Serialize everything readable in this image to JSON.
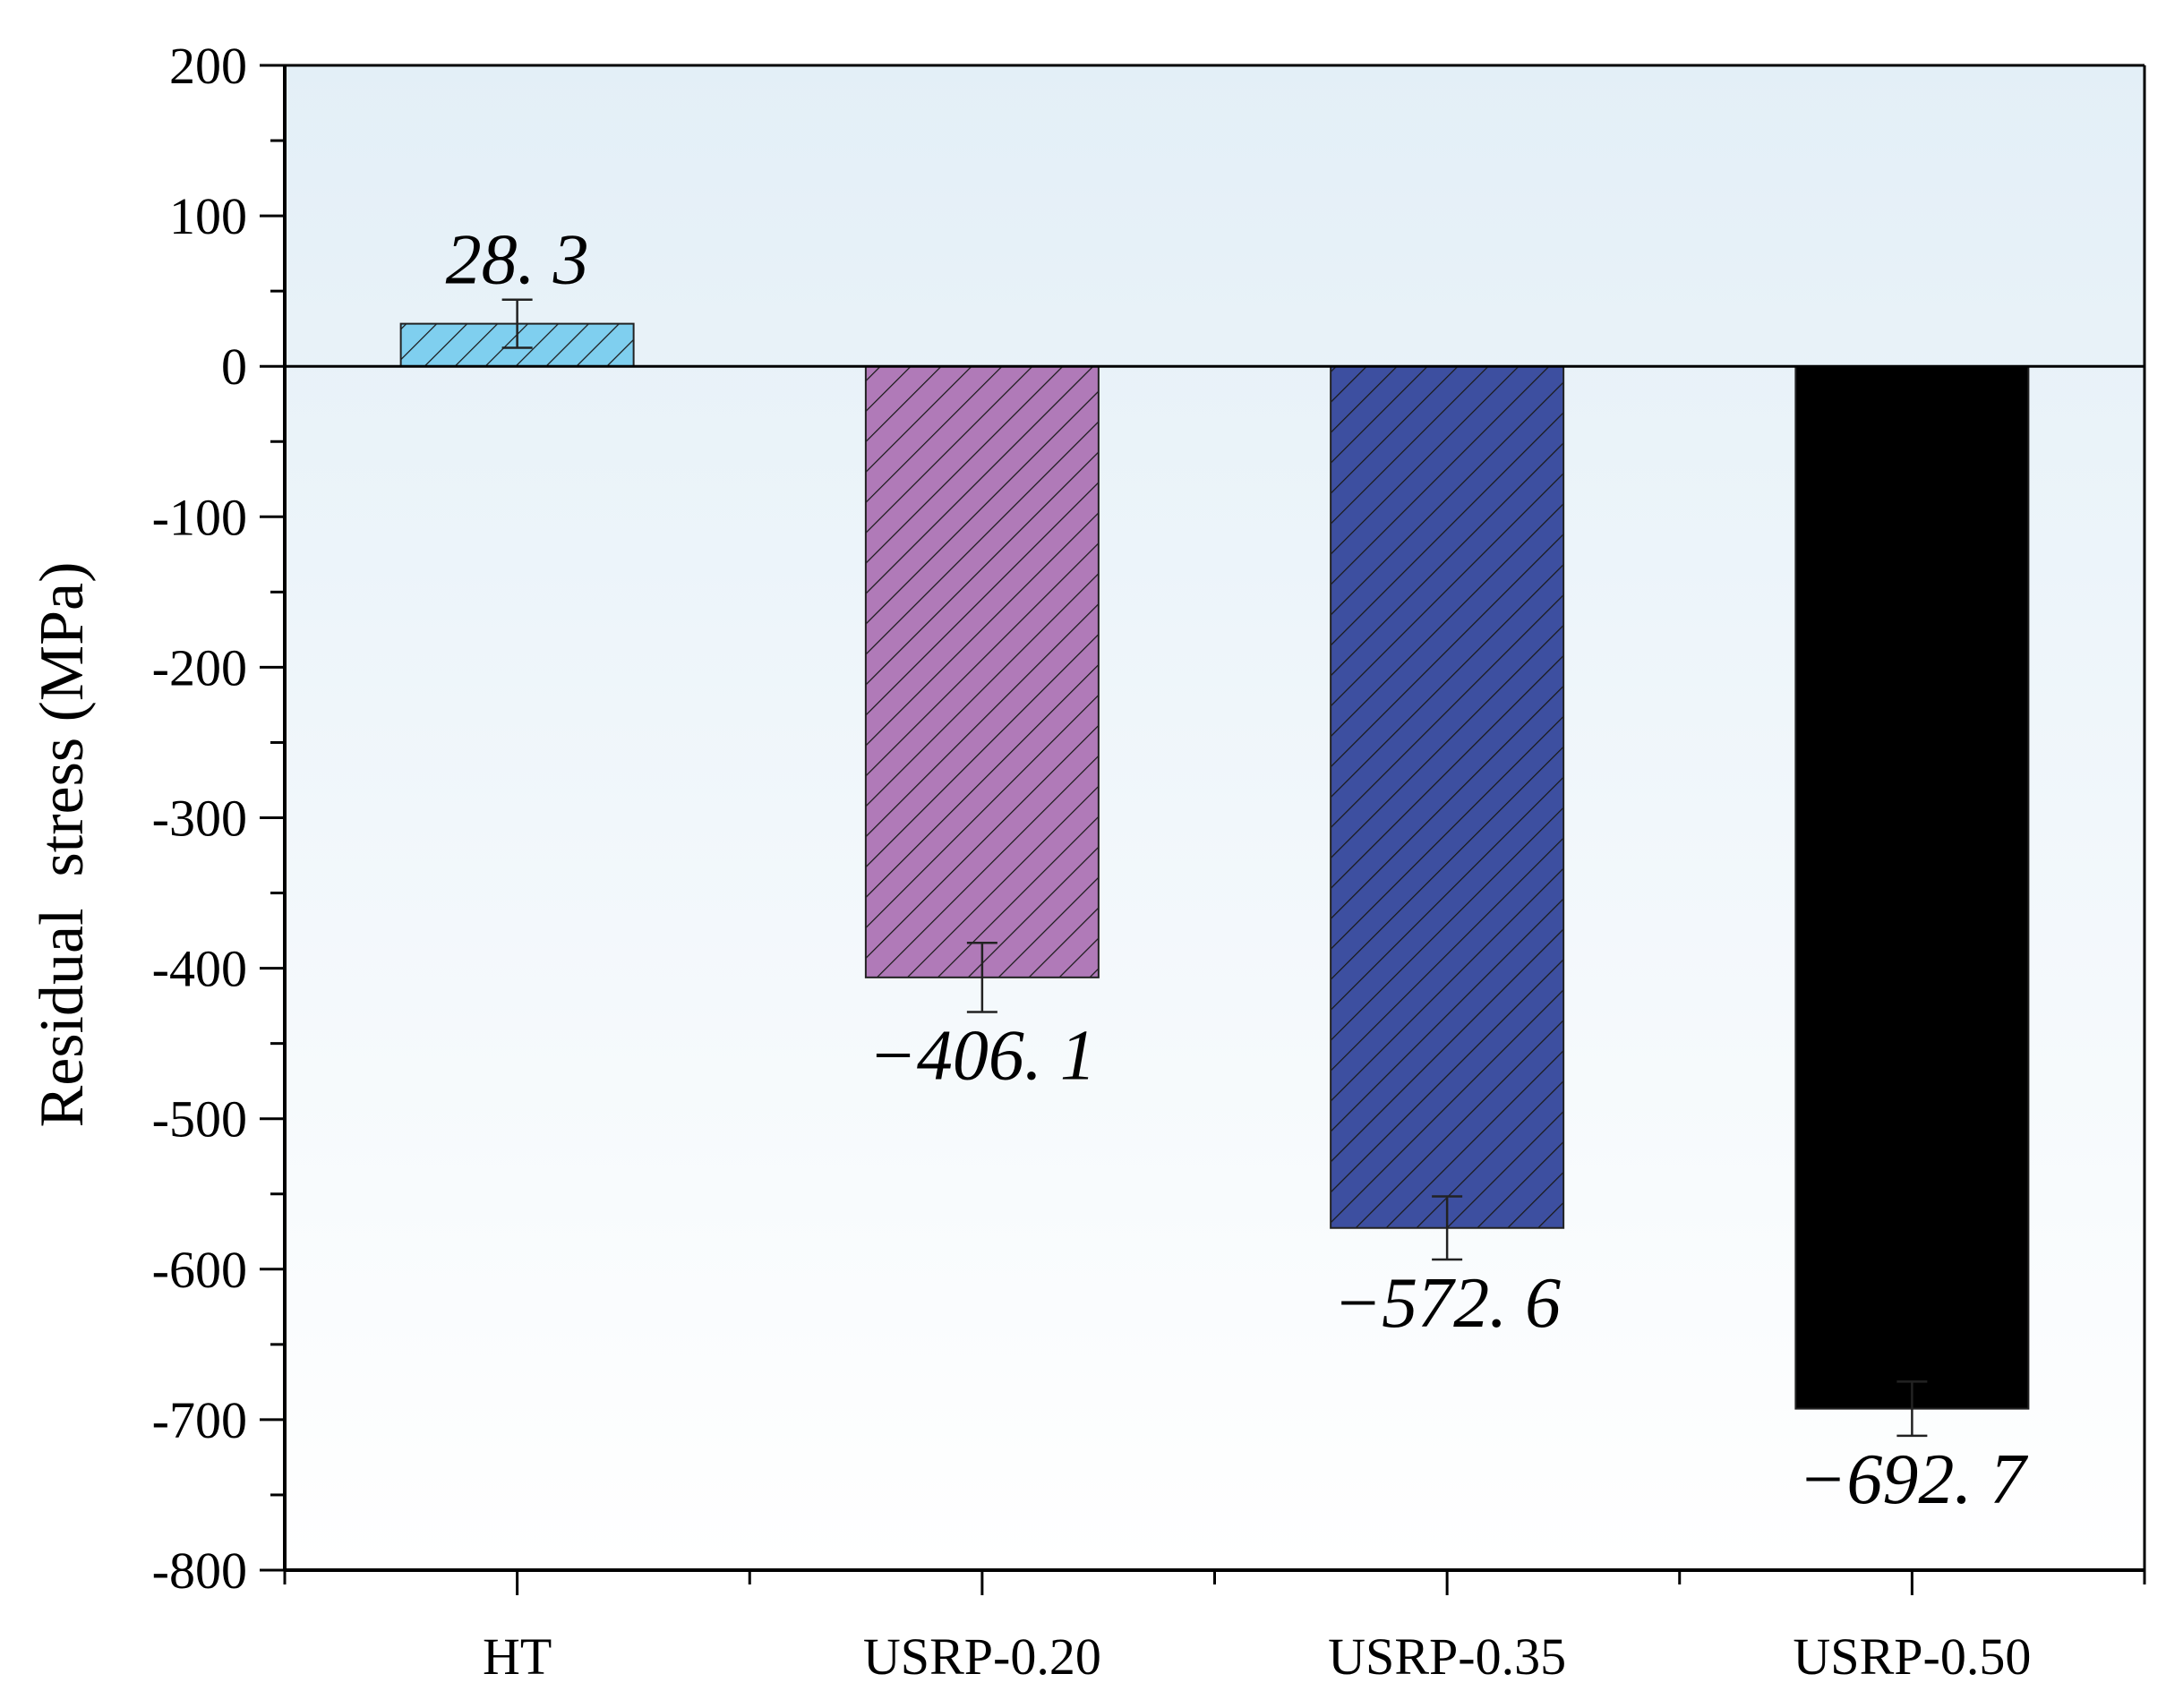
{
  "chart_data": {
    "type": "bar",
    "categories": [
      "HT",
      "USRP-0.20",
      "USRP-0.35",
      "USRP-0.50"
    ],
    "values": [
      28.3,
      -406.1,
      -572.6,
      -692.7
    ],
    "errors": [
      16,
      23,
      21,
      18
    ],
    "data_labels": [
      "28. 3",
      "−406. 1",
      "−572. 6",
      "−692. 7"
    ],
    "colors": [
      "#7fcfef",
      "#b07ab8",
      "#3d4fa0",
      "#000000"
    ],
    "hatched": [
      true,
      true,
      true,
      false
    ],
    "title": "",
    "xlabel": "",
    "ylabel": "Residual  stress (MPa)",
    "ylim": [
      -800,
      200
    ],
    "yticks": [
      200,
      100,
      0,
      -100,
      -200,
      -300,
      -400,
      -500,
      -600,
      -700,
      -800
    ],
    "ytick_labels": [
      "200",
      "100",
      "0",
      "-100",
      "-200",
      "-300",
      "-400",
      "-500",
      "-600",
      "-700",
      "-800"
    ],
    "grid": false,
    "background_gradient": [
      "#e3eff7",
      "#ffffff"
    ]
  }
}
